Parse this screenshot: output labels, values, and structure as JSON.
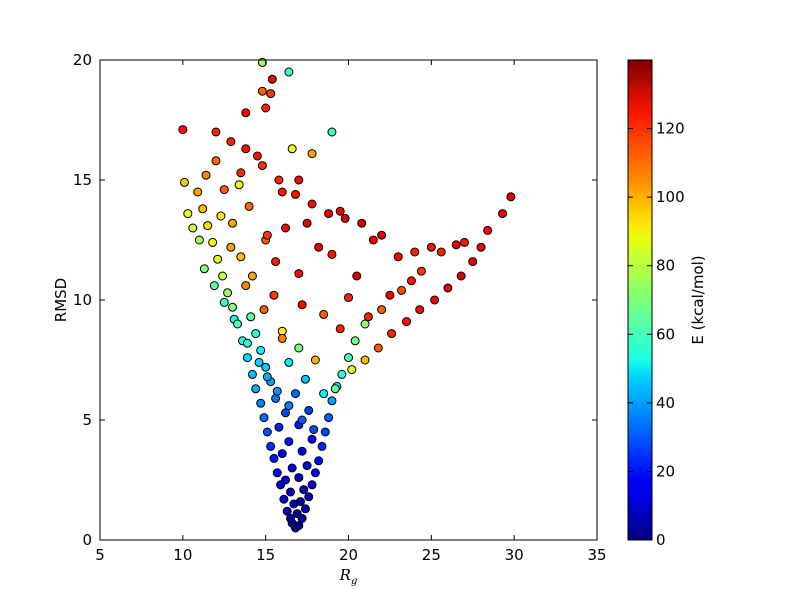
{
  "chart_data": {
    "type": "scatter",
    "xlabel_main": "R",
    "xlabel_sub": "g",
    "ylabel": "RMSD",
    "xlim": [
      5,
      35
    ],
    "ylim": [
      0,
      20
    ],
    "xticks": [
      5,
      10,
      15,
      20,
      25,
      30,
      35
    ],
    "yticks": [
      0,
      5,
      10,
      15,
      20
    ],
    "grid": false,
    "colorbar": {
      "label": "E (kcal/mol)",
      "range": [
        0,
        140
      ],
      "ticks": [
        0,
        20,
        40,
        60,
        80,
        100,
        120
      ],
      "colormap": "jet"
    },
    "marker_edge_color": "#000000",
    "points": [
      [
        16.8,
        0.5,
        2
      ],
      [
        16.6,
        0.7,
        4
      ],
      [
        17.0,
        0.6,
        3
      ],
      [
        16.5,
        0.9,
        6
      ],
      [
        17.2,
        0.9,
        5
      ],
      [
        16.9,
        1.1,
        4
      ],
      [
        16.3,
        1.2,
        8
      ],
      [
        17.4,
        1.3,
        7
      ],
      [
        16.7,
        1.5,
        9
      ],
      [
        17.1,
        1.6,
        6
      ],
      [
        16.1,
        1.7,
        12
      ],
      [
        17.6,
        1.8,
        10
      ],
      [
        16.5,
        2.0,
        10
      ],
      [
        17.3,
        2.1,
        8
      ],
      [
        15.9,
        2.3,
        15
      ],
      [
        17.8,
        2.3,
        14
      ],
      [
        16.2,
        2.5,
        12
      ],
      [
        17.0,
        2.6,
        9
      ],
      [
        15.7,
        2.8,
        18
      ],
      [
        18.0,
        2.8,
        16
      ],
      [
        16.6,
        3.0,
        14
      ],
      [
        17.5,
        3.1,
        12
      ],
      [
        15.5,
        3.4,
        20
      ],
      [
        18.2,
        3.3,
        18
      ],
      [
        16.0,
        3.6,
        16
      ],
      [
        17.2,
        3.7,
        15
      ],
      [
        15.3,
        3.9,
        24
      ],
      [
        18.4,
        3.9,
        22
      ],
      [
        16.4,
        4.1,
        20
      ],
      [
        17.8,
        4.2,
        18
      ],
      [
        15.1,
        4.5,
        28
      ],
      [
        18.6,
        4.5,
        26
      ],
      [
        15.8,
        4.7,
        22
      ],
      [
        17.0,
        4.8,
        20
      ],
      [
        14.9,
        5.1,
        32
      ],
      [
        18.8,
        5.1,
        30
      ],
      [
        16.2,
        5.3,
        28
      ],
      [
        17.6,
        5.4,
        26
      ],
      [
        14.7,
        5.7,
        36
      ],
      [
        19.0,
        5.8,
        40
      ],
      [
        15.6,
        5.9,
        34
      ],
      [
        16.8,
        6.1,
        32
      ],
      [
        14.4,
        6.3,
        42
      ],
      [
        19.3,
        6.4,
        50
      ],
      [
        15.3,
        6.6,
        40
      ],
      [
        17.4,
        6.7,
        45
      ],
      [
        14.2,
        6.9,
        44
      ],
      [
        19.6,
        6.9,
        58
      ],
      [
        15.0,
        7.2,
        46
      ],
      [
        16.4,
        7.4,
        50
      ],
      [
        13.9,
        7.6,
        48
      ],
      [
        20.0,
        7.6,
        64
      ],
      [
        14.7,
        7.9,
        52
      ],
      [
        17.0,
        8.0,
        70
      ],
      [
        13.6,
        8.3,
        56
      ],
      [
        20.4,
        8.3,
        68
      ],
      [
        14.4,
        8.6,
        58
      ],
      [
        16.0,
        8.7,
        90
      ],
      [
        13.3,
        9.0,
        62
      ],
      [
        21.0,
        9.0,
        72
      ],
      [
        14.1,
        9.3,
        66
      ],
      [
        18.5,
        9.4,
        110
      ],
      [
        13.0,
        9.7,
        70
      ],
      [
        22.0,
        9.6,
        110
      ],
      [
        12.7,
        10.3,
        74
      ],
      [
        15.5,
        10.2,
        115
      ],
      [
        20.0,
        10.1,
        118
      ],
      [
        23.2,
        10.4,
        112
      ],
      [
        12.4,
        11.0,
        78
      ],
      [
        14.2,
        11.0,
        100
      ],
      [
        17.0,
        11.1,
        122
      ],
      [
        24.4,
        11.2,
        115
      ],
      [
        12.1,
        11.7,
        84
      ],
      [
        13.5,
        11.8,
        96
      ],
      [
        19.0,
        11.9,
        120
      ],
      [
        25.6,
        12.0,
        118
      ],
      [
        11.8,
        12.4,
        88
      ],
      [
        15.0,
        12.5,
        110
      ],
      [
        21.5,
        12.5,
        124
      ],
      [
        27.0,
        12.4,
        120
      ],
      [
        11.5,
        13.1,
        92
      ],
      [
        13.0,
        13.2,
        100
      ],
      [
        17.5,
        13.2,
        126
      ],
      [
        28.4,
        12.9,
        122
      ],
      [
        11.2,
        13.8,
        96
      ],
      [
        14.0,
        13.9,
        108
      ],
      [
        19.5,
        13.7,
        124
      ],
      [
        29.3,
        13.6,
        125
      ],
      [
        10.9,
        14.5,
        100
      ],
      [
        12.5,
        14.6,
        110
      ],
      [
        16.0,
        14.5,
        120
      ],
      [
        29.8,
        14.3,
        126
      ],
      [
        11.4,
        15.2,
        104
      ],
      [
        13.5,
        15.3,
        116
      ],
      [
        17.0,
        15.0,
        122
      ],
      [
        12.0,
        15.8,
        108
      ],
      [
        14.5,
        16.0,
        120
      ],
      [
        10.0,
        17.1,
        120
      ],
      [
        12.0,
        17.0,
        118
      ],
      [
        13.8,
        17.8,
        122
      ],
      [
        15.0,
        18.0,
        118
      ],
      [
        14.8,
        18.7,
        110
      ],
      [
        15.3,
        18.6,
        115
      ],
      [
        15.4,
        19.2,
        125
      ],
      [
        14.8,
        19.9,
        75
      ],
      [
        16.4,
        19.5,
        60
      ],
      [
        19.0,
        17.0,
        62
      ],
      [
        17.8,
        16.1,
        100
      ],
      [
        16.6,
        16.3,
        85
      ],
      [
        13.4,
        14.8,
        85
      ],
      [
        12.3,
        13.5,
        90
      ],
      [
        11.0,
        12.5,
        75
      ],
      [
        10.6,
        13.0,
        80
      ],
      [
        10.3,
        13.6,
        85
      ],
      [
        10.1,
        14.9,
        95
      ],
      [
        11.3,
        11.3,
        70
      ],
      [
        11.9,
        10.6,
        65
      ],
      [
        12.5,
        9.9,
        60
      ],
      [
        13.1,
        9.2,
        55
      ],
      [
        13.9,
        8.2,
        58
      ],
      [
        14.6,
        7.4,
        48
      ],
      [
        15.1,
        6.8,
        42
      ],
      [
        15.7,
        6.2,
        38
      ],
      [
        16.4,
        5.6,
        35
      ],
      [
        17.2,
        5.0,
        30
      ],
      [
        17.9,
        4.6,
        28
      ],
      [
        18.5,
        6.1,
        52
      ],
      [
        19.2,
        6.3,
        66
      ],
      [
        20.2,
        7.1,
        82
      ],
      [
        21.0,
        7.5,
        96
      ],
      [
        21.8,
        8.0,
        110
      ],
      [
        22.6,
        8.6,
        118
      ],
      [
        23.5,
        9.1,
        120
      ],
      [
        24.3,
        9.6,
        122
      ],
      [
        25.2,
        10.0,
        124
      ],
      [
        26.0,
        10.5,
        126
      ],
      [
        26.8,
        11.0,
        128
      ],
      [
        27.5,
        11.6,
        126
      ],
      [
        28.0,
        12.2,
        124
      ],
      [
        26.5,
        12.3,
        124
      ],
      [
        25.0,
        12.2,
        120
      ],
      [
        24.0,
        12.0,
        118
      ],
      [
        23.0,
        11.8,
        122
      ],
      [
        22.0,
        12.7,
        126
      ],
      [
        20.8,
        13.2,
        128
      ],
      [
        19.8,
        13.4,
        126
      ],
      [
        18.8,
        13.6,
        124
      ],
      [
        17.8,
        14.0,
        122
      ],
      [
        16.8,
        14.4,
        120
      ],
      [
        15.8,
        15.0,
        118
      ],
      [
        14.8,
        15.6,
        116
      ],
      [
        13.8,
        16.3,
        120
      ],
      [
        12.9,
        16.6,
        118
      ],
      [
        16.2,
        13.0,
        122
      ],
      [
        18.2,
        12.2,
        126
      ],
      [
        20.5,
        11.0,
        128
      ],
      [
        22.5,
        10.2,
        124
      ],
      [
        19.5,
        8.8,
        118
      ],
      [
        18.0,
        7.5,
        98
      ],
      [
        16.0,
        8.4,
        104
      ],
      [
        14.9,
        9.6,
        110
      ],
      [
        13.8,
        10.6,
        104
      ],
      [
        12.9,
        12.2,
        100
      ],
      [
        15.6,
        11.6,
        118
      ],
      [
        17.2,
        9.8,
        122
      ],
      [
        21.2,
        9.3,
        118
      ],
      [
        23.8,
        10.8,
        120
      ],
      [
        15.1,
        12.7,
        115
      ]
    ]
  }
}
